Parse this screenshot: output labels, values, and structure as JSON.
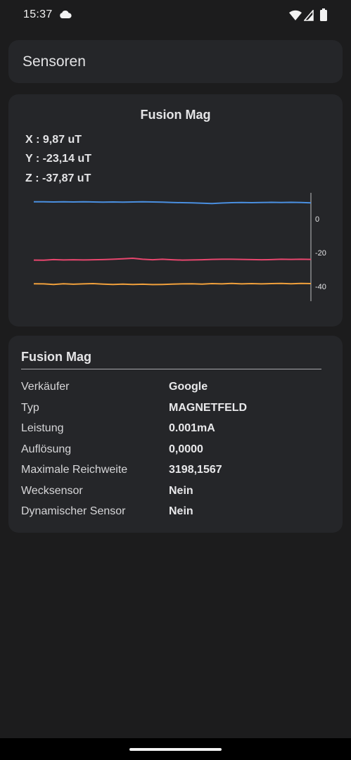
{
  "status_bar": {
    "time": "15:37",
    "icons": [
      "cloud-icon",
      "wifi-icon",
      "signal-icon",
      "battery-icon"
    ]
  },
  "header": {
    "title": "Sensoren"
  },
  "chart_card": {
    "title": "Fusion Mag",
    "readouts": {
      "x": "X : 9,87 uT",
      "y": "Y : -23,14 uT",
      "z": "Z : -37,87 uT"
    }
  },
  "chart_data": {
    "type": "line",
    "title": "",
    "xlabel": "",
    "ylabel": "",
    "ylim": [
      -48,
      12
    ],
    "y_ticks": [
      0,
      -20,
      -40
    ],
    "y_tick_labels": [
      "0",
      "-20",
      "-40"
    ],
    "grid": false,
    "legend": "none",
    "x": [
      0,
      1,
      2,
      3,
      4,
      5,
      6,
      7,
      8,
      9,
      10,
      11,
      12,
      13,
      14,
      15,
      16,
      17,
      18,
      19,
      20,
      21,
      22,
      23,
      24,
      25,
      26,
      27,
      28
    ],
    "series": [
      {
        "color": "#4a8fe0",
        "values": [
          10.0,
          10.0,
          9.9,
          10.0,
          9.9,
          10.0,
          9.9,
          9.8,
          9.9,
          9.8,
          9.9,
          10.0,
          9.9,
          9.8,
          9.6,
          9.5,
          9.4,
          9.2,
          9.0,
          9.3,
          9.5,
          9.6,
          9.5,
          9.6,
          9.7,
          9.6,
          9.7,
          9.6,
          9.4
        ]
      },
      {
        "color": "#e8466e",
        "values": [
          -24.5,
          -24.6,
          -24.2,
          -24.4,
          -24.3,
          -24.4,
          -24.3,
          -24.2,
          -24.0,
          -23.7,
          -23.4,
          -24.0,
          -24.3,
          -24.0,
          -24.3,
          -24.5,
          -24.4,
          -24.3,
          -24.1,
          -24.0,
          -24.0,
          -24.1,
          -24.2,
          -24.3,
          -24.2,
          -24.0,
          -24.1,
          -24.0,
          -24.1
        ]
      },
      {
        "color": "#f0a03c",
        "values": [
          -38.5,
          -38.6,
          -38.9,
          -38.5,
          -38.8,
          -38.6,
          -38.4,
          -38.7,
          -38.9,
          -38.7,
          -38.9,
          -38.8,
          -39.0,
          -38.9,
          -38.7,
          -38.6,
          -38.5,
          -38.7,
          -38.4,
          -38.6,
          -38.3,
          -38.6,
          -38.4,
          -38.6,
          -38.4,
          -38.3,
          -38.5,
          -38.3,
          -38.4
        ]
      }
    ]
  },
  "info_card": {
    "title": "Fusion Mag",
    "rows": [
      {
        "label": "Verkäufer",
        "value": "Google"
      },
      {
        "label": "Typ",
        "value": "MAGNETFELD"
      },
      {
        "label": "Leistung",
        "value": "0.001mA"
      },
      {
        "label": "Auflösung",
        "value": "0,0000"
      },
      {
        "label": "Maximale Reichweite",
        "value": "3198,1567"
      },
      {
        "label": "Wecksensor",
        "value": "Nein"
      },
      {
        "label": "Dynamischer Sensor",
        "value": "Nein"
      }
    ]
  },
  "colors": {
    "background": "#1c1c1d",
    "card": "#252629",
    "series_x": "#4a8fe0",
    "series_y": "#e8466e",
    "series_z": "#f0a03c"
  }
}
